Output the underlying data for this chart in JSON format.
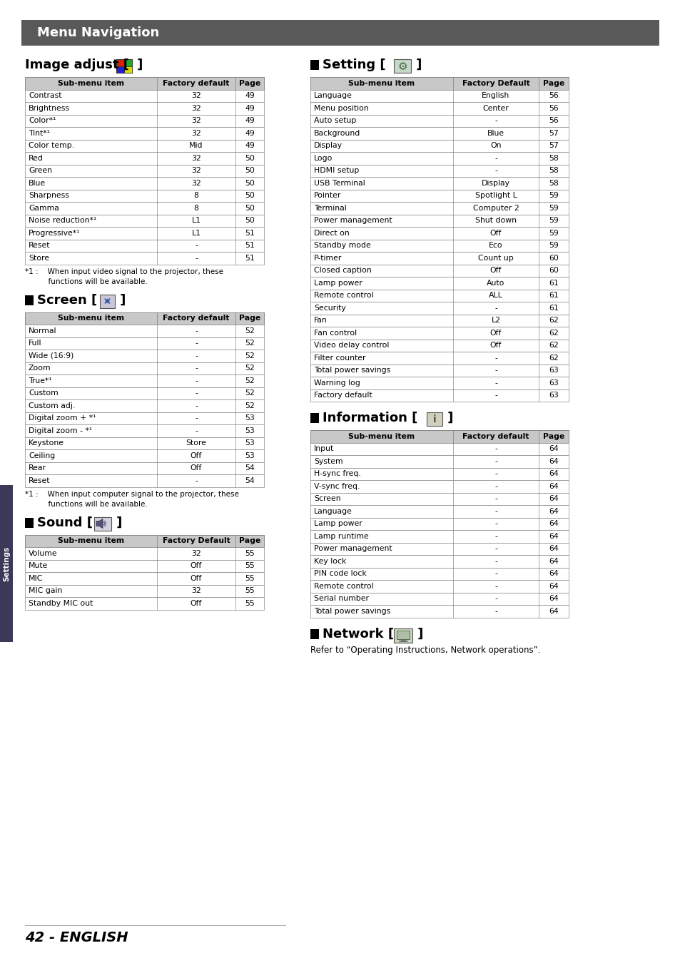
{
  "title": "Menu Navigation",
  "title_bg": "#5a5a5a",
  "title_color": "#ffffff",
  "page_bg": "#ffffff",
  "footer_text": "42 - ENGLISH",
  "image_adjust_cols": [
    "Sub-menu item",
    "Factory default",
    "Page"
  ],
  "image_adjust_header_bg": "#c8c8c8",
  "image_adjust_rows": [
    [
      "Contrast",
      "32",
      "49"
    ],
    [
      "Brightness",
      "32",
      "49"
    ],
    [
      "Color*¹",
      "32",
      "49"
    ],
    [
      "Tint*¹",
      "32",
      "49"
    ],
    [
      "Color temp.",
      "Mid",
      "49"
    ],
    [
      "Red",
      "32",
      "50"
    ],
    [
      "Green",
      "32",
      "50"
    ],
    [
      "Blue",
      "32",
      "50"
    ],
    [
      "Sharpness",
      "8",
      "50"
    ],
    [
      "Gamma",
      "8",
      "50"
    ],
    [
      "Noise reduction*¹",
      "L1",
      "50"
    ],
    [
      "Progressive*¹",
      "L1",
      "51"
    ],
    [
      "Reset",
      "-",
      "51"
    ],
    [
      "Store",
      "-",
      "51"
    ]
  ],
  "image_adjust_note1": "*1 :    When input video signal to the projector, these",
  "image_adjust_note2": "          functions will be available.",
  "screen_cols": [
    "Sub-menu item",
    "Factory default",
    "Page"
  ],
  "screen_header_bg": "#c8c8c8",
  "screen_rows": [
    [
      "Normal",
      "-",
      "52"
    ],
    [
      "Full",
      "-",
      "52"
    ],
    [
      "Wide (16:9)",
      "-",
      "52"
    ],
    [
      "Zoom",
      "-",
      "52"
    ],
    [
      "True*¹",
      "-",
      "52"
    ],
    [
      "Custom",
      "-",
      "52"
    ],
    [
      "Custom adj.",
      "-",
      "52"
    ],
    [
      "Digital zoom + *¹",
      "-",
      "53"
    ],
    [
      "Digital zoom - *¹",
      "-",
      "53"
    ],
    [
      "Keystone",
      "Store",
      "53"
    ],
    [
      "Ceiling",
      "Off",
      "53"
    ],
    [
      "Rear",
      "Off",
      "54"
    ],
    [
      "Reset",
      "-",
      "54"
    ]
  ],
  "screen_note1": "*1 :    When input computer signal to the projector, these",
  "screen_note2": "          functions will be available.",
  "sound_cols": [
    "Sub-menu item",
    "Factory Default",
    "Page"
  ],
  "sound_header_bg": "#c8c8c8",
  "sound_rows": [
    [
      "Volume",
      "32",
      "55"
    ],
    [
      "Mute",
      "Off",
      "55"
    ],
    [
      "MIC",
      "Off",
      "55"
    ],
    [
      "MIC gain",
      "32",
      "55"
    ],
    [
      "Standby MIC out",
      "Off",
      "55"
    ]
  ],
  "setting_cols": [
    "Sub-menu item",
    "Factory Default",
    "Page"
  ],
  "setting_header_bg": "#c8c8c8",
  "setting_rows": [
    [
      "Language",
      "English",
      "56"
    ],
    [
      "Menu position",
      "Center",
      "56"
    ],
    [
      "Auto setup",
      "-",
      "56"
    ],
    [
      "Background",
      "Blue",
      "57"
    ],
    [
      "Display",
      "On",
      "57"
    ],
    [
      "Logo",
      "-",
      "58"
    ],
    [
      "HDMI setup",
      "-",
      "58"
    ],
    [
      "USB Terminal",
      "Display",
      "58"
    ],
    [
      "Pointer",
      "Spotlight L",
      "59"
    ],
    [
      "Terminal",
      "Computer 2",
      "59"
    ],
    [
      "Power management",
      "Shut down",
      "59"
    ],
    [
      "Direct on",
      "Off",
      "59"
    ],
    [
      "Standby mode",
      "Eco",
      "59"
    ],
    [
      "P-timer",
      "Count up",
      "60"
    ],
    [
      "Closed caption",
      "Off",
      "60"
    ],
    [
      "Lamp power",
      "Auto",
      "61"
    ],
    [
      "Remote control",
      "ALL",
      "61"
    ],
    [
      "Security",
      "-",
      "61"
    ],
    [
      "Fan",
      "L2",
      "62"
    ],
    [
      "Fan control",
      "Off",
      "62"
    ],
    [
      "Video delay control",
      "Off",
      "62"
    ],
    [
      "Filter counter",
      "-",
      "62"
    ],
    [
      "Total power savings",
      "-",
      "63"
    ],
    [
      "Warning log",
      "-",
      "63"
    ],
    [
      "Factory default",
      "-",
      "63"
    ]
  ],
  "information_cols": [
    "Sub-menu item",
    "Factory default",
    "Page"
  ],
  "information_header_bg": "#c8c8c8",
  "information_rows": [
    [
      "Input",
      "-",
      "64"
    ],
    [
      "System",
      "-",
      "64"
    ],
    [
      "H-sync freq.",
      "-",
      "64"
    ],
    [
      "V-sync freq.",
      "-",
      "64"
    ],
    [
      "Screen",
      "-",
      "64"
    ],
    [
      "Language",
      "-",
      "64"
    ],
    [
      "Lamp power",
      "-",
      "64"
    ],
    [
      "Lamp runtime",
      "-",
      "64"
    ],
    [
      "Power management",
      "-",
      "64"
    ],
    [
      "Key lock",
      "-",
      "64"
    ],
    [
      "PIN code lock",
      "-",
      "64"
    ],
    [
      "Remote control",
      "-",
      "64"
    ],
    [
      "Serial number",
      "-",
      "64"
    ],
    [
      "Total power savings",
      "-",
      "64"
    ]
  ],
  "network_note": "Refer to “Operating Instructions, Network operations”."
}
